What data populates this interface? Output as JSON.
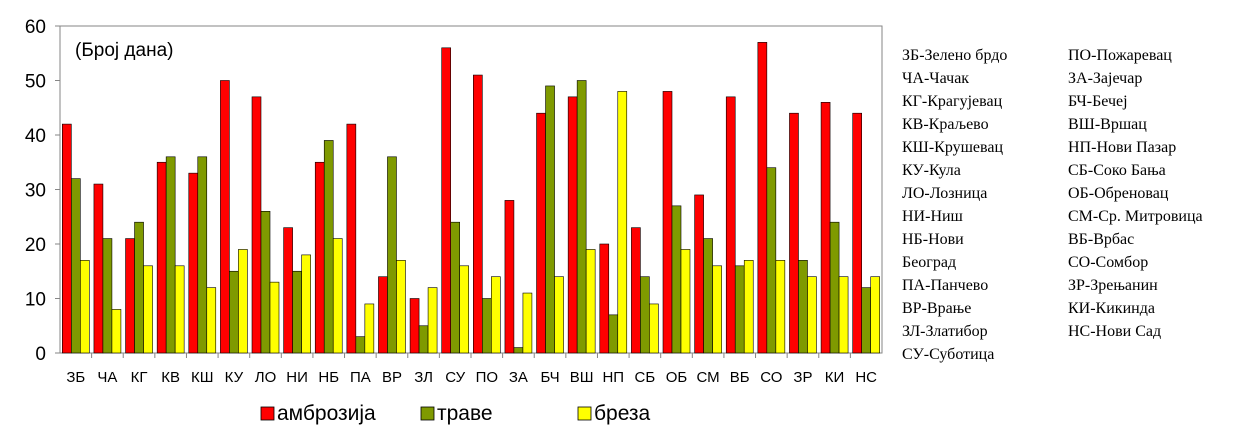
{
  "chart_data": {
    "type": "bar",
    "annotation": "(Број дана)",
    "categories": [
      "ЗБ",
      "ЧА",
      "КГ",
      "КВ",
      "КШ",
      "КУ",
      "ЛО",
      "НИ",
      "НБ",
      "ПА",
      "ВР",
      "ЗЛ",
      "СУ",
      "ПО",
      "ЗА",
      "БЧ",
      "ВШ",
      "НП",
      "СБ",
      "ОБ",
      "СМ",
      "ВБ",
      "СО",
      "ЗР",
      "КИ",
      "НС"
    ],
    "series": [
      {
        "name": "амброзија",
        "color": "#ff0000",
        "values": [
          42,
          31,
          21,
          35,
          33,
          50,
          47,
          23,
          35,
          42,
          14,
          10,
          56,
          51,
          28,
          44,
          47,
          20,
          23,
          48,
          29,
          47,
          57,
          44,
          46,
          44
        ]
      },
      {
        "name": "траве",
        "color": "#7f9a00",
        "values": [
          32,
          21,
          24,
          36,
          36,
          15,
          26,
          15,
          39,
          3,
          36,
          5,
          24,
          10,
          1,
          49,
          50,
          7,
          14,
          27,
          21,
          16,
          34,
          17,
          24,
          12
        ]
      },
      {
        "name": "бреза",
        "color": "#ffff00",
        "values": [
          17,
          8,
          16,
          16,
          12,
          19,
          13,
          18,
          21,
          9,
          17,
          12,
          16,
          14,
          11,
          14,
          19,
          48,
          9,
          19,
          16,
          17,
          17,
          14,
          14,
          14
        ]
      }
    ],
    "ylim": [
      0,
      60
    ],
    "yticks": [
      0,
      10,
      20,
      30,
      40,
      50,
      60
    ],
    "grid": false,
    "legend_position": "bottom"
  },
  "abbreviations": {
    "col1": [
      "ЗБ-Зелено брдо",
      "ЧА-Чачак",
      "КГ-Крагујевац",
      "КВ-Краљево",
      "КШ-Крушевац",
      "КУ-Кула",
      "ЛО-Лозница",
      "НИ-Ниш",
      "НБ-Нови",
      "Београд",
      "ПА-Панчево",
      "ВР-Врање",
      "ЗЛ-Златибор",
      "СУ-Суботица"
    ],
    "col2": [
      "ПО-Пожаревац",
      "ЗА-Зајечар",
      "БЧ-Бечеј",
      "ВШ-Вршац",
      "НП-Нови Пазар",
      "СБ-Соко Бања",
      "ОБ-Обреновац",
      "СМ-Ср. Митровица",
      "ВБ-Врбас",
      "СО-Сомбор",
      "ЗР-Зрењанин",
      "КИ-Кикинда",
      "НС-Нови Сад"
    ]
  }
}
